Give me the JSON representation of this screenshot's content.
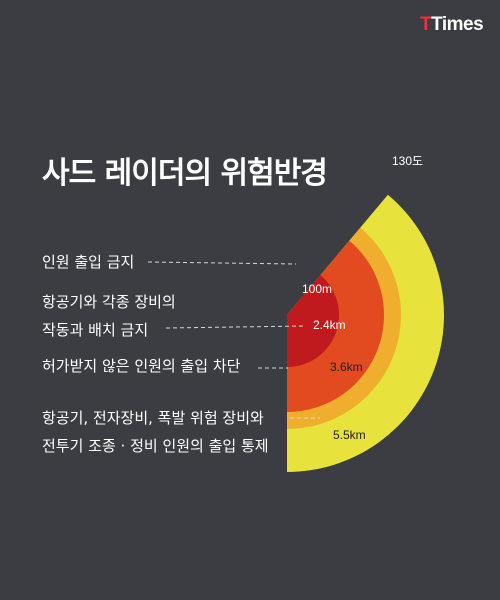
{
  "logo": {
    "part1": "T",
    "part2": "Times"
  },
  "title": "사드 레이더의 위험반경",
  "angle_label": "130도",
  "zones": [
    {
      "distance": "100m",
      "color": "#c0191e",
      "label_lines": [
        "인원 출입 금지"
      ]
    },
    {
      "distance": "2.4km",
      "color": "#e24a1f",
      "label_lines": [
        "항공기와 각종 장비의",
        "작동과 배치 금지"
      ]
    },
    {
      "distance": "3.6km",
      "color": "#efae2e",
      "label_lines": [
        "허가받지 않은 인원의 출입 차단"
      ]
    },
    {
      "distance": "5.5km",
      "color": "#e8e23c",
      "label_lines": [
        "항공기, 전자장비, 폭발 위험 장비와",
        "전투기 조종 · 정비 인원의 출입 통제"
      ]
    }
  ],
  "colors": {
    "background": "#3b3d42",
    "leader": "#d7d7d7"
  }
}
